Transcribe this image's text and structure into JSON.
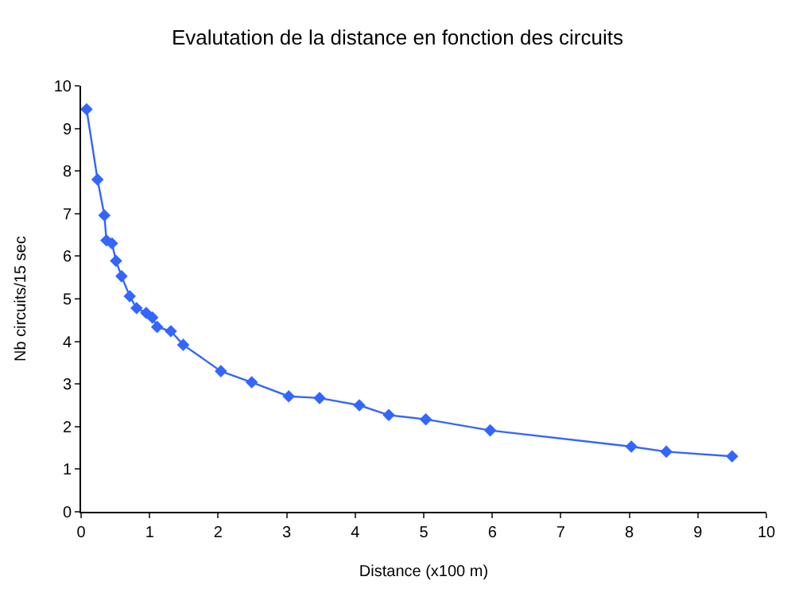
{
  "chart_data": {
    "type": "line",
    "title": "Evalutation de la distance en fonction des circuits",
    "xlabel": "Distance (x100 m)",
    "ylabel": "Nb circuits/15 sec",
    "x": [
      0.08,
      0.24,
      0.34,
      0.37,
      0.45,
      0.51,
      0.59,
      0.71,
      0.81,
      0.95,
      1.04,
      1.11,
      1.31,
      1.49,
      2.04,
      2.49,
      3.03,
      3.48,
      4.06,
      4.49,
      5.03,
      5.97,
      8.03,
      8.54,
      9.5
    ],
    "series": [
      {
        "color": "#3366ff",
        "values": [
          9.45,
          7.8,
          6.96,
          6.37,
          6.3,
          5.89,
          5.53,
          5.06,
          4.78,
          4.67,
          4.56,
          4.34,
          4.24,
          3.92,
          3.3,
          3.04,
          2.71,
          2.67,
          2.5,
          2.27,
          2.17,
          1.91,
          1.53,
          1.41,
          1.3
        ]
      }
    ],
    "xlim": [
      0,
      10
    ],
    "ylim": [
      0,
      10
    ],
    "xticks": [
      0,
      1,
      2,
      3,
      4,
      5,
      6,
      7,
      8,
      9,
      10
    ],
    "yticks": [
      0,
      1,
      2,
      3,
      4,
      5,
      6,
      7,
      8,
      9,
      10
    ],
    "grid": false,
    "marker": "diamond",
    "line_style": "solid"
  }
}
